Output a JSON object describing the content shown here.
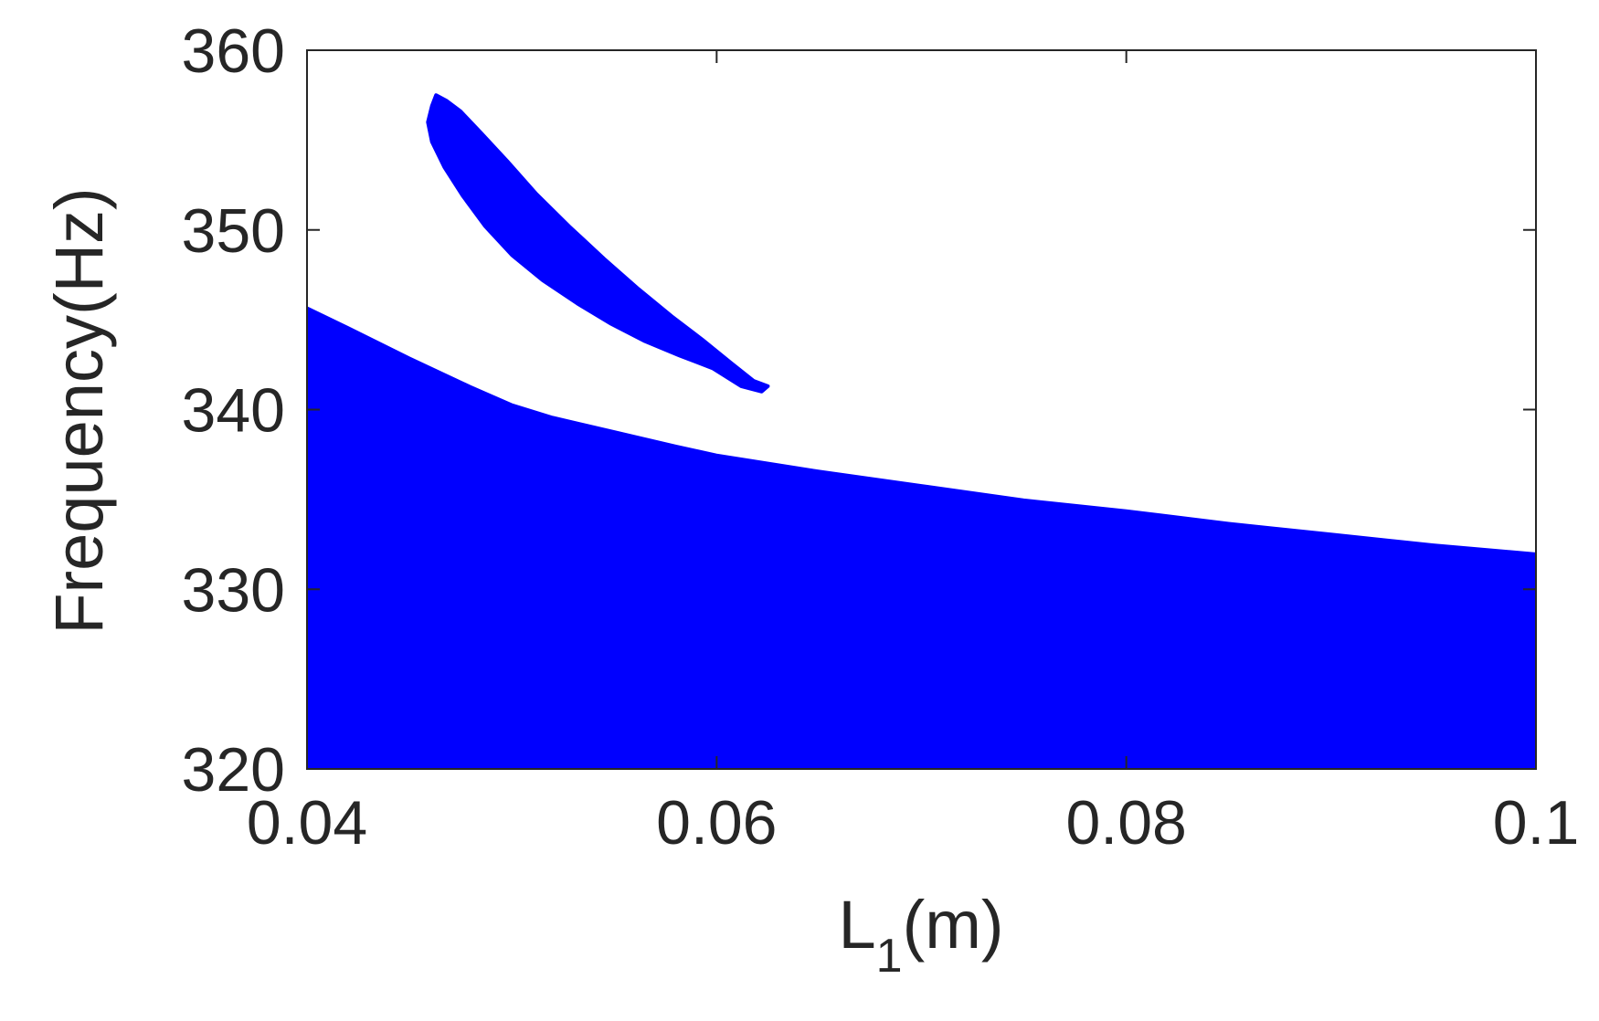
{
  "chart_data": {
    "type": "area",
    "title": "",
    "xlabel": "L",
    "xlabel_subscript": "1",
    "xlabel_unit": "(m)",
    "ylabel": "Frequency(Hz)",
    "xlim": [
      0.04,
      0.1
    ],
    "ylim": [
      320,
      360
    ],
    "xticks": [
      0.04,
      0.06,
      0.08,
      0.1
    ],
    "xtick_labels": [
      "0.04",
      "0.06",
      "0.08",
      "0.1"
    ],
    "yticks": [
      320,
      330,
      340,
      350,
      360
    ],
    "ytick_labels": [
      "320",
      "330",
      "340",
      "350",
      "360"
    ],
    "grid": false,
    "fill_color": "#0000ff",
    "series": [
      {
        "region": "lower-band",
        "x": [
          0.04,
          0.042,
          0.045,
          0.048,
          0.05,
          0.052,
          0.055,
          0.058,
          0.06,
          0.065,
          0.07,
          0.075,
          0.08,
          0.085,
          0.09,
          0.095,
          0.1
        ],
        "y_upper": [
          345.7,
          344.6,
          342.9,
          341.3,
          340.3,
          339.6,
          338.8,
          338.0,
          337.5,
          336.6,
          335.8,
          335.0,
          334.4,
          333.7,
          333.1,
          332.5,
          332.0
        ],
        "y_lower": 320
      },
      {
        "region": "upper-island",
        "x_outline": [
          0.0463,
          0.0468,
          0.0475,
          0.0485,
          0.0498,
          0.0512,
          0.0528,
          0.0545,
          0.0562,
          0.0578,
          0.0593,
          0.0607,
          0.0618,
          0.0625,
          0.0622,
          0.0612,
          0.0598,
          0.0582,
          0.0565,
          0.0548,
          0.0532,
          0.0515,
          0.05,
          0.0487,
          0.0476,
          0.0467,
          0.0461,
          0.0459,
          0.0461
        ],
        "y_outline": [
          357.5,
          357.2,
          356.6,
          355.4,
          353.8,
          352.0,
          350.2,
          348.4,
          346.7,
          345.2,
          343.9,
          342.6,
          341.6,
          341.3,
          341.0,
          341.3,
          342.3,
          343.0,
          343.8,
          344.8,
          345.9,
          347.2,
          348.6,
          350.2,
          351.9,
          353.5,
          354.9,
          356.0,
          356.9
        ]
      }
    ]
  }
}
